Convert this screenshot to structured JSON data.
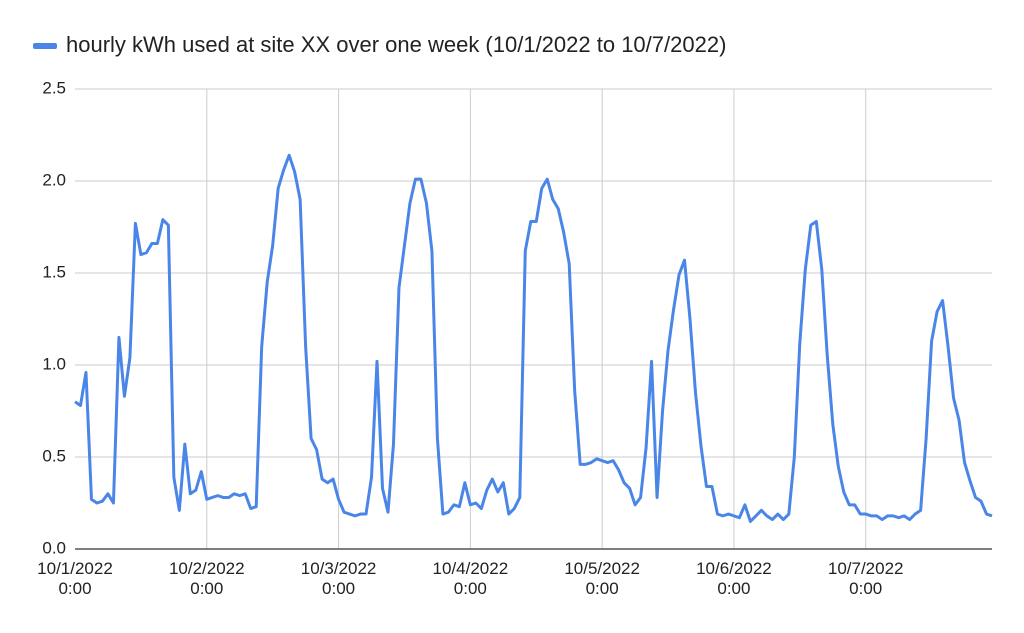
{
  "chart_data": {
    "type": "line",
    "legend": "top-left",
    "grid": true,
    "categories": [
      "10/1/2022 0:00",
      null,
      null,
      null,
      null,
      null,
      null,
      null,
      null,
      null,
      null,
      null,
      null,
      null,
      null,
      null,
      null,
      null,
      null,
      null,
      null,
      null,
      null,
      null,
      "10/2/2022 0:00",
      null,
      null,
      null,
      null,
      null,
      null,
      null,
      null,
      null,
      null,
      null,
      null,
      null,
      null,
      null,
      null,
      null,
      null,
      null,
      null,
      null,
      null,
      null,
      "10/3/2022 0:00",
      null,
      null,
      null,
      null,
      null,
      null,
      null,
      null,
      null,
      null,
      null,
      null,
      null,
      null,
      null,
      null,
      null,
      null,
      null,
      null,
      null,
      null,
      null,
      "10/4/2022 0:00",
      null,
      null,
      null,
      null,
      null,
      null,
      null,
      null,
      null,
      null,
      null,
      null,
      null,
      null,
      null,
      null,
      null,
      null,
      null,
      null,
      null,
      null,
      null,
      "10/5/2022 0:00",
      null,
      null,
      null,
      null,
      null,
      null,
      null,
      null,
      null,
      null,
      null,
      null,
      null,
      null,
      null,
      null,
      null,
      null,
      null,
      null,
      null,
      null,
      null,
      "10/6/2022 0:00",
      null,
      null,
      null,
      null,
      null,
      null,
      null,
      null,
      null,
      null,
      null,
      null,
      null,
      null,
      null,
      null,
      null,
      null,
      null,
      null,
      null,
      null,
      null,
      "10/7/2022 0:00",
      null,
      null,
      null,
      null,
      null,
      null,
      null,
      null,
      null,
      null,
      null,
      null,
      null,
      null,
      null,
      null,
      null,
      null,
      null,
      null,
      null,
      null,
      null
    ],
    "series": [
      {
        "name": "hourly kWh used at site XX over one week (10/1/2022 to 10/7/2022)",
        "color": "#4a86e8",
        "values": [
          0.8,
          0.78,
          0.96,
          0.27,
          0.25,
          0.26,
          0.3,
          0.25,
          1.15,
          0.83,
          1.04,
          1.77,
          1.6,
          1.61,
          1.66,
          1.66,
          1.79,
          1.76,
          0.39,
          0.21,
          0.57,
          0.3,
          0.32,
          0.42,
          0.27,
          0.28,
          0.29,
          0.28,
          0.28,
          0.3,
          0.29,
          0.3,
          0.22,
          0.23,
          1.1,
          1.45,
          1.65,
          1.96,
          2.06,
          2.14,
          2.05,
          1.9,
          1.1,
          0.6,
          0.54,
          0.38,
          0.36,
          0.38,
          0.27,
          0.2,
          0.19,
          0.18,
          0.19,
          0.19,
          0.39,
          1.02,
          0.33,
          0.2,
          0.57,
          1.42,
          1.65,
          1.88,
          2.01,
          2.01,
          1.88,
          1.62,
          0.6,
          0.19,
          0.2,
          0.24,
          0.23,
          0.36,
          0.24,
          0.25,
          0.22,
          0.32,
          0.38,
          0.31,
          0.36,
          0.19,
          0.22,
          0.28,
          1.62,
          1.78,
          1.78,
          1.96,
          2.01,
          1.9,
          1.85,
          1.72,
          1.55,
          0.86,
          0.46,
          0.46,
          0.47,
          0.49,
          0.48,
          0.47,
          0.48,
          0.43,
          0.36,
          0.33,
          0.24,
          0.28,
          0.55,
          1.02,
          0.28,
          0.75,
          1.08,
          1.3,
          1.49,
          1.57,
          1.25,
          0.85,
          0.56,
          0.34,
          0.34,
          0.19,
          0.18,
          0.19,
          0.18,
          0.17,
          0.24,
          0.15,
          0.18,
          0.21,
          0.18,
          0.16,
          0.19,
          0.16,
          0.19,
          0.5,
          1.12,
          1.52,
          1.76,
          1.78,
          1.52,
          1.05,
          0.68,
          0.45,
          0.31,
          0.24,
          0.24,
          0.19,
          0.19,
          0.18,
          0.18,
          0.16,
          0.18,
          0.18,
          0.17,
          0.18,
          0.16,
          0.19,
          0.21,
          0.6,
          1.13,
          1.29,
          1.35,
          1.1,
          0.82,
          0.7,
          0.47,
          0.37,
          0.28,
          0.26,
          0.19,
          0.18
        ]
      }
    ],
    "ylim": [
      0,
      2.5
    ],
    "yticks": [
      {
        "value": 0,
        "label": "0.0"
      },
      {
        "value": 0.5,
        "label": "0.5"
      },
      {
        "value": 1,
        "label": "1.0"
      },
      {
        "value": 1.5,
        "label": "1.5"
      },
      {
        "value": 2,
        "label": "2.0"
      },
      {
        "value": 2.5,
        "label": "2.5"
      }
    ]
  }
}
